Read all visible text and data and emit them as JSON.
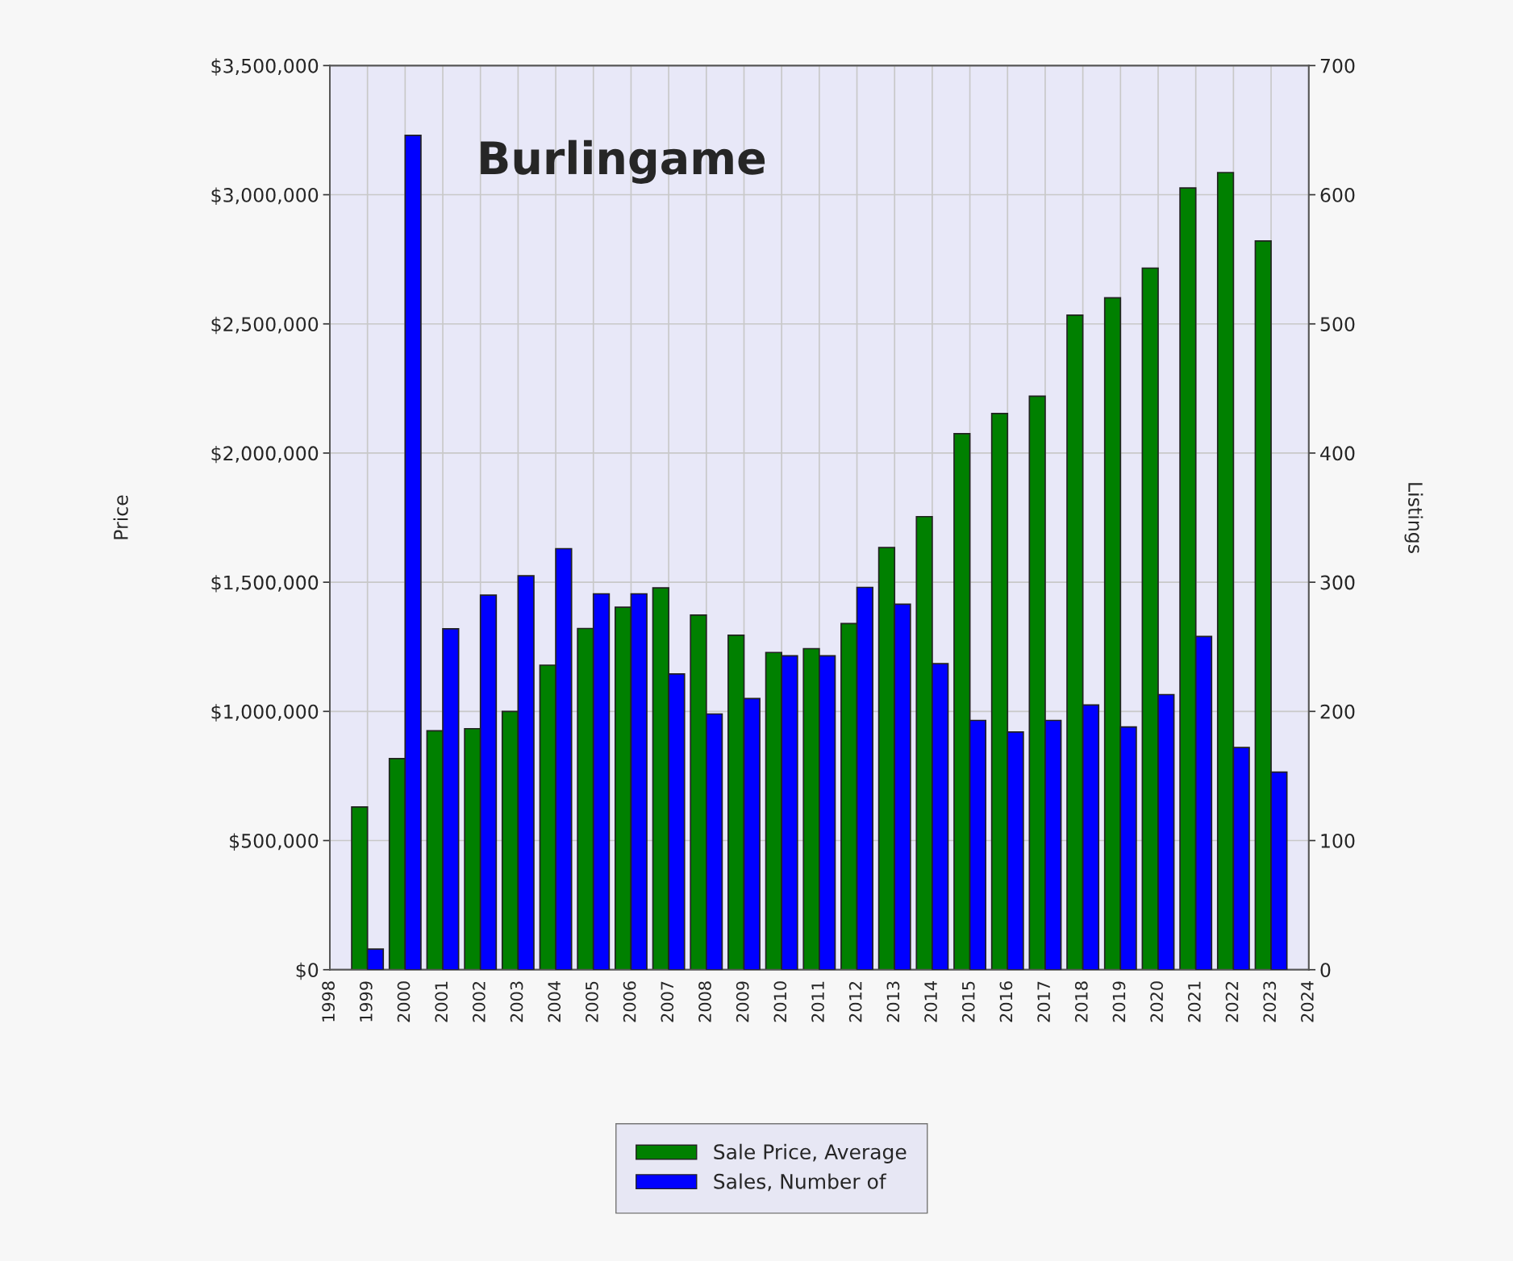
{
  "chart_data": {
    "type": "bar",
    "title": "Burlingame",
    "ylabel": "Price",
    "y2label": "Listings",
    "x": [
      1999,
      2000,
      2001,
      2002,
      2003,
      2004,
      2005,
      2006,
      2007,
      2008,
      2009,
      2010,
      2011,
      2012,
      2013,
      2014,
      2015,
      2016,
      2017,
      2018,
      2019,
      2020,
      2021,
      2022,
      2023
    ],
    "series": [
      {
        "name": "Sale Price, Average",
        "color": "#008000",
        "values": [
          630000,
          817000,
          925000,
          933000,
          1000000,
          1179000,
          1321000,
          1403000,
          1478000,
          1373000,
          1295000,
          1228000,
          1243000,
          1340000,
          1634000,
          1754000,
          2075000,
          2153000,
          2220000,
          2534000,
          2601000,
          2716000,
          3026000,
          3086000,
          2821000
        ]
      },
      {
        "name": "Sales, Number of",
        "color": "#0000ff",
        "axis": "y2",
        "values": [
          16,
          646,
          264,
          290,
          305,
          326,
          291,
          291,
          229,
          198,
          210,
          243,
          243,
          296,
          283,
          237,
          193,
          184,
          193,
          205,
          188,
          213,
          258,
          172,
          153
        ]
      }
    ],
    "xlim": [
      1998,
      2024
    ],
    "xticks": [
      1998,
      1999,
      2000,
      2001,
      2002,
      2003,
      2004,
      2005,
      2006,
      2007,
      2008,
      2009,
      2010,
      2011,
      2012,
      2013,
      2014,
      2015,
      2016,
      2017,
      2018,
      2019,
      2020,
      2021,
      2022,
      2023,
      2024
    ],
    "ylim": [
      0,
      3500000
    ],
    "yticks": [
      {
        "value": 0,
        "label": "$0"
      },
      {
        "value": 500000,
        "label": "$500,000"
      },
      {
        "value": 1000000,
        "label": "$1,000,000"
      },
      {
        "value": 1500000,
        "label": "$1,500,000"
      },
      {
        "value": 2000000,
        "label": "$2,000,000"
      },
      {
        "value": 2500000,
        "label": "$2,500,000"
      },
      {
        "value": 3000000,
        "label": "$3,000,000"
      },
      {
        "value": 3500000,
        "label": "$3,500,000"
      }
    ],
    "y2lim": [
      0,
      700
    ],
    "y2ticks": [
      0,
      100,
      200,
      300,
      400,
      500,
      600,
      700
    ],
    "grid": true,
    "legend": "bottom"
  }
}
